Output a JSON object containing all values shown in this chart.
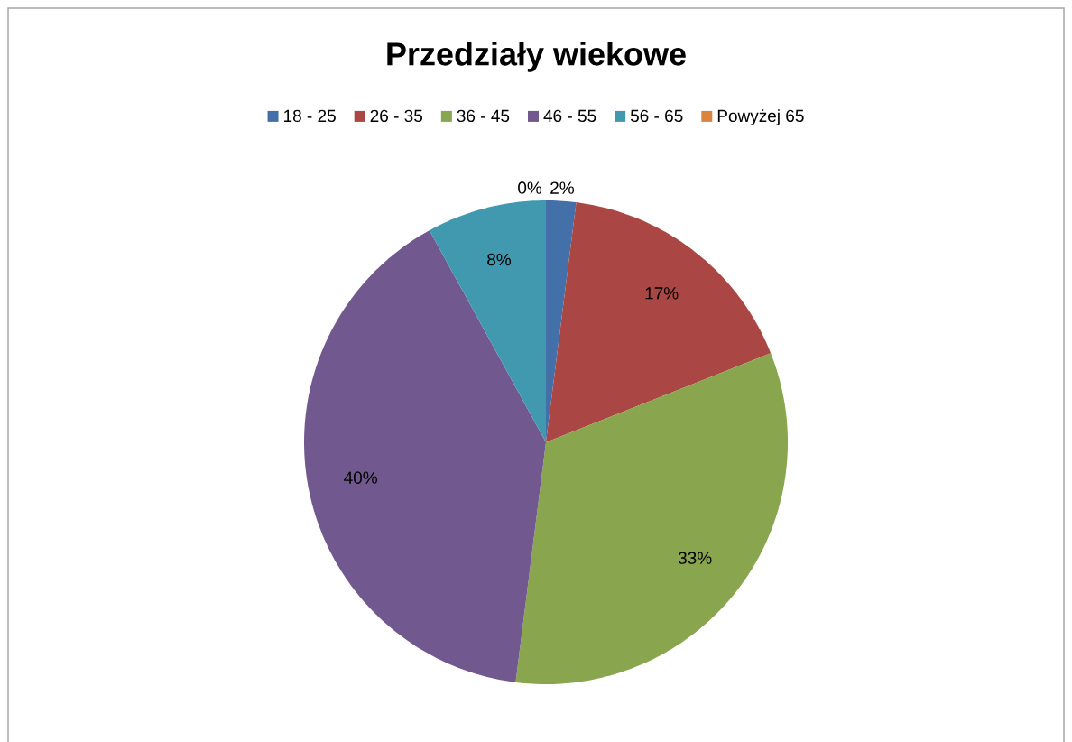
{
  "chart_data": {
    "type": "pie",
    "title": "Przedziały wiekowe",
    "categories": [
      "18 - 25",
      "26 - 35",
      "36 - 45",
      "46 - 55",
      "56 - 65",
      "Powyżej 65"
    ],
    "values": [
      2,
      17,
      33,
      40,
      8,
      0
    ],
    "value_labels": [
      "2%",
      "17%",
      "33%",
      "40%",
      "8%",
      "0%"
    ],
    "colors": [
      "#4470aa",
      "#aa4744",
      "#89a64e",
      "#71598f",
      "#4199b0",
      "#db843d"
    ],
    "legend": "top"
  }
}
